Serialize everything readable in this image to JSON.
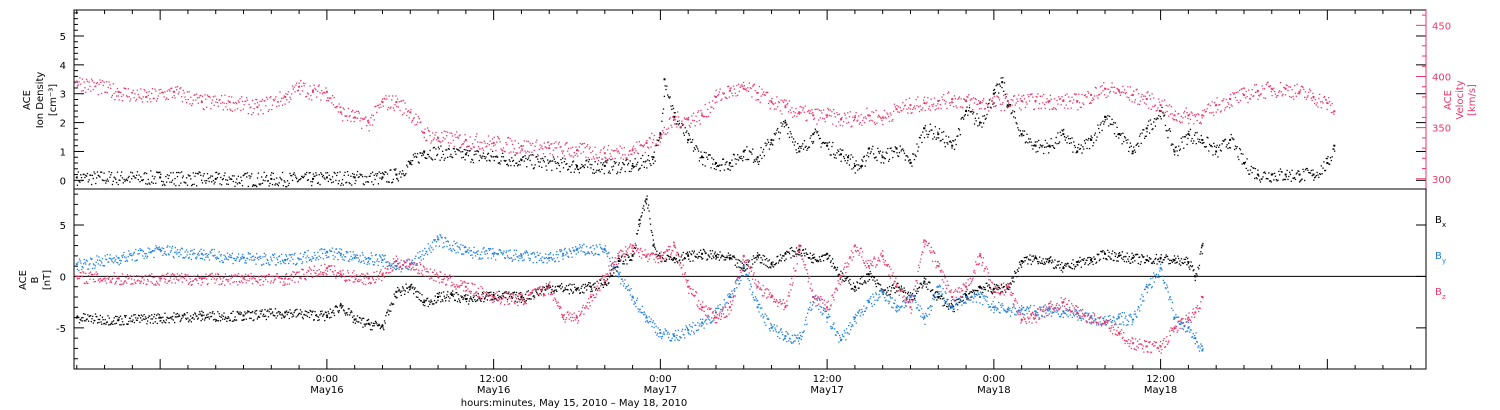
{
  "chart_data": [
    {
      "type": "scatter",
      "panel": "top",
      "ylabel": [
        "ACE",
        "Ion Density",
        "[cm⁻³]"
      ],
      "ylabel_right": [
        "ACE",
        "Velocity",
        "[km/s]"
      ],
      "ylim": [
        -0.3,
        5.9
      ],
      "ylim_right": [
        290,
        465
      ],
      "yticks": [
        "0",
        "1",
        "2",
        "3",
        "4",
        "5"
      ],
      "yticks_right": [
        "300",
        "350",
        "400",
        "450"
      ],
      "right_axis_color": "#e8386a",
      "series": [
        {
          "color": "#000000",
          "x": [
            -18,
            -12,
            -8,
            -4,
            -1,
            0,
            2,
            4,
            5,
            6,
            7,
            10,
            14,
            18,
            20,
            22,
            23.5,
            24,
            24.3,
            25,
            26,
            27,
            28,
            29,
            30,
            31,
            32,
            33,
            34,
            35,
            36,
            37,
            37.5,
            38,
            38.5,
            39,
            40,
            41,
            42,
            43,
            44,
            45,
            46,
            47,
            48,
            48.6,
            49,
            50,
            51,
            52,
            53,
            54,
            55,
            56,
            57,
            58,
            59,
            60,
            61,
            62,
            63,
            64,
            65,
            66,
            67,
            68,
            69,
            70,
            71,
            72,
            72.5
          ],
          "values": [
            0.1,
            0.1,
            0.05,
            0.05,
            0.05,
            0.1,
            0.1,
            0.1,
            0.2,
            0.6,
            1.0,
            0.9,
            0.7,
            0.5,
            0.5,
            0.5,
            0.8,
            1.6,
            3.5,
            2.2,
            1.4,
            0.8,
            0.6,
            0.6,
            1.0,
            0.8,
            1.4,
            2.0,
            1.0,
            1.6,
            1.2,
            0.9,
            0.8,
            0.5,
            0.5,
            1.1,
            0.8,
            1.1,
            0.6,
            1.8,
            1.6,
            1.2,
            2.4,
            2.0,
            3.0,
            3.4,
            2.6,
            1.6,
            1.2,
            1.2,
            1.6,
            1.0,
            1.4,
            2.2,
            1.6,
            1.0,
            1.8,
            2.4,
            1.0,
            1.6,
            1.4,
            1.0,
            1.4,
            0.6,
            0.2,
            0.2,
            0.2,
            0.2,
            0.2,
            0.6,
            1.2
          ]
        },
        {
          "color": "#e8386a",
          "x": [
            -18,
            -15,
            -13,
            -11,
            -9,
            -7,
            -5,
            -3,
            -2,
            -1,
            0,
            1,
            2,
            3,
            4,
            5,
            6,
            7,
            8,
            10,
            12,
            14,
            16,
            18,
            20,
            22,
            23,
            24,
            25,
            26,
            27,
            28,
            29,
            30,
            31,
            32,
            33,
            34,
            35,
            36,
            37,
            38,
            39,
            40,
            41,
            42,
            43,
            44,
            45,
            46,
            47,
            48,
            49,
            50,
            51,
            52,
            53,
            54,
            55,
            56,
            57,
            58,
            59,
            60,
            61,
            62,
            63,
            64,
            65,
            66,
            67,
            68,
            69,
            70,
            71,
            72,
            72.5
          ],
          "values": [
            395,
            385,
            380,
            385,
            375,
            375,
            370,
            380,
            390,
            385,
            385,
            365,
            360,
            355,
            375,
            375,
            365,
            345,
            340,
            338,
            335,
            332,
            330,
            328,
            325,
            328,
            335,
            342,
            358,
            358,
            362,
            380,
            386,
            388,
            384,
            375,
            370,
            365,
            362,
            362,
            358,
            360,
            362,
            360,
            368,
            372,
            374,
            376,
            378,
            376,
            374,
            374,
            376,
            376,
            376,
            376,
            376,
            376,
            382,
            388,
            386,
            382,
            378,
            372,
            362,
            362,
            362,
            372,
            378,
            382,
            386,
            388,
            388,
            385,
            380,
            374,
            366
          ]
        }
      ]
    },
    {
      "type": "scatter",
      "panel": "bottom",
      "ylabel": [
        "ACE",
        "B",
        "[nT]"
      ],
      "ylim": [
        -9,
        8.5
      ],
      "yticks": [
        "-5",
        "0",
        "5"
      ],
      "xlabel": "hours:minutes, May 15, 2010 – May 18, 2010",
      "x_range_hours_from_May16": [
        -18.2,
        79.1
      ],
      "x_tick_labels": [
        {
          "hour": 0,
          "time": "0:00",
          "date": "May16"
        },
        {
          "hour": 12,
          "time": "12:00",
          "date": "May16"
        },
        {
          "hour": 24,
          "time": "0:00",
          "date": "May17"
        },
        {
          "hour": 36,
          "time": "12:00",
          "date": "May17"
        },
        {
          "hour": 48,
          "time": "0:00",
          "date": "May18"
        },
        {
          "hour": 60,
          "time": "12:00",
          "date": "May18"
        }
      ],
      "series": [
        {
          "color": "#000000",
          "x": [
            -18,
            -15,
            -12,
            -9,
            -6,
            -3,
            0,
            1,
            2,
            3,
            4,
            5,
            6,
            7,
            8,
            9,
            10,
            12,
            14,
            16,
            18,
            19,
            20,
            21,
            22,
            22.5,
            23,
            23.5,
            24,
            25,
            26,
            27,
            28,
            29,
            30,
            31,
            32,
            33,
            34,
            35,
            36,
            37,
            38,
            39,
            40,
            41,
            42,
            43,
            44,
            45,
            46,
            47,
            48,
            49,
            50,
            51,
            52,
            53,
            54,
            55,
            56,
            57,
            58,
            59,
            60,
            61,
            62,
            62.5,
            63
          ],
          "values": [
            -4,
            -4.2,
            -4,
            -3.8,
            -3.8,
            -3.5,
            -3.8,
            -2.8,
            -4.2,
            -4.6,
            -4.8,
            -1.5,
            -1.0,
            -2.5,
            -2.0,
            -1.8,
            -2.2,
            -1.8,
            -2.0,
            -1.0,
            -1.2,
            -1.0,
            -0.6,
            1.5,
            2.0,
            5.5,
            7.5,
            3.0,
            2.0,
            1.8,
            2.0,
            2.2,
            2.0,
            1.8,
            0.8,
            2.0,
            1.2,
            2.2,
            2.6,
            1.8,
            2.2,
            0.0,
            -1.0,
            0.2,
            -1.5,
            -1.0,
            -2.0,
            -0.5,
            -2.0,
            -3.0,
            -1.8,
            -1.0,
            -1.2,
            -1.0,
            1.5,
            1.8,
            1.5,
            0.8,
            1.4,
            1.6,
            2.2,
            2.0,
            1.8,
            1.6,
            1.8,
            1.6,
            1.4,
            0.0,
            3.0
          ]
        },
        {
          "color": "#1f7fe0",
          "x": [
            -18,
            -15,
            -12,
            -9,
            -6,
            -3,
            0,
            1,
            2,
            3,
            4,
            5,
            6,
            8,
            10,
            12,
            14,
            16,
            17,
            18,
            20,
            21,
            22,
            23,
            24,
            25,
            26,
            27,
            28,
            29,
            30,
            31,
            32,
            33,
            34,
            35,
            36,
            37,
            38,
            39,
            40,
            41,
            42,
            43,
            44,
            45,
            46,
            47,
            48,
            49,
            50,
            51,
            52,
            53,
            54,
            55,
            56,
            57,
            58,
            59,
            60,
            61,
            61.5,
            62,
            62.5,
            63
          ],
          "values": [
            1.2,
            1.8,
            2.6,
            2.2,
            1.8,
            1.6,
            2.4,
            2.2,
            1.8,
            1.8,
            1.6,
            1.0,
            1.2,
            3.6,
            2.4,
            2.2,
            2.0,
            1.8,
            2.2,
            2.6,
            2.6,
            0.0,
            -2.0,
            -4.0,
            -5.5,
            -5.8,
            -5.2,
            -4.5,
            -3.5,
            -2.0,
            1.0,
            -3.0,
            -5.0,
            -5.8,
            -6.0,
            -2.0,
            -4.0,
            -6.2,
            -4.0,
            -2.5,
            -1.5,
            -3.0,
            -2.0,
            -4.0,
            -1.0,
            -3.0,
            -2.0,
            -2.0,
            -3.0,
            -3.2,
            -3.2,
            -3.4,
            -3.2,
            -3.4,
            -3.6,
            -4.0,
            -4.4,
            -4.0,
            -4.2,
            -1.0,
            0.8,
            -4.0,
            -4.5,
            -5.0,
            -6.0,
            -7.2
          ]
        },
        {
          "color": "#e8386a",
          "x": [
            -18,
            -15,
            -12,
            -9,
            -6,
            -3,
            0,
            1,
            2,
            3,
            4,
            5,
            6,
            8,
            10,
            12,
            14,
            16,
            17,
            18,
            19,
            20,
            21,
            22,
            23,
            24,
            25,
            26,
            27,
            28,
            29,
            30,
            31,
            32,
            33,
            34,
            35,
            36,
            37,
            38,
            39,
            40,
            41,
            42,
            43,
            44,
            45,
            46,
            47,
            48,
            49,
            50,
            51,
            52,
            53,
            54,
            55,
            56,
            57,
            58,
            59,
            60,
            61,
            62,
            62.5,
            63
          ],
          "values": [
            0,
            -0.2,
            -0.2,
            -0.2,
            -0.2,
            -0.2,
            0.8,
            0.2,
            0.0,
            -0.2,
            0.2,
            1.5,
            1.2,
            0.0,
            -1.0,
            -2.0,
            -2.2,
            -1.0,
            -3.8,
            -4.0,
            -2.0,
            0.0,
            2.0,
            3.0,
            2.0,
            2.0,
            3.0,
            -1.0,
            -3.0,
            -4.0,
            -3.0,
            2.0,
            -1.0,
            -2.0,
            -3.0,
            3.0,
            -2.0,
            -3.0,
            0.0,
            3.0,
            1.0,
            2.0,
            -1.0,
            -3.0,
            3.5,
            1.0,
            -2.0,
            -1.0,
            2.0,
            -1.5,
            -1.0,
            -4.2,
            -3.8,
            -3.0,
            -2.5,
            -3.5,
            -4.0,
            -4.5,
            -5.5,
            -6.5,
            -6.8,
            -6.8,
            -5.0,
            -4.0,
            -3.5,
            -2.0
          ]
        }
      ],
      "legend": [
        {
          "label": "B",
          "sub": "x",
          "color": "#000000"
        },
        {
          "label": "B",
          "sub": "y",
          "color": "#1f7fe0"
        },
        {
          "label": "B",
          "sub": "z",
          "color": "#e8386a"
        }
      ]
    }
  ]
}
